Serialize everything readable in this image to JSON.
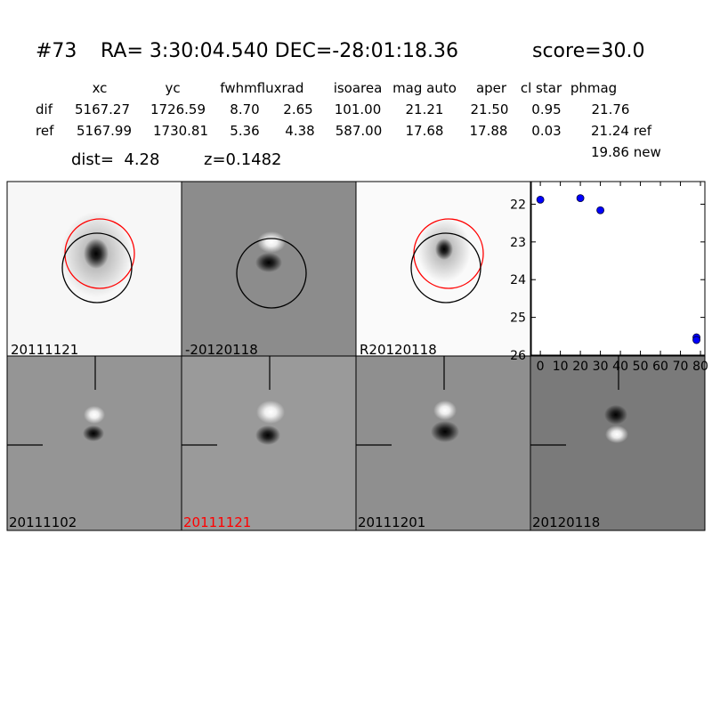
{
  "header": {
    "id": "#73",
    "coords": "RA= 3:30:04.540 DEC=-28:01:18.36",
    "score": "score=30.0"
  },
  "table": {
    "columns": [
      "xc",
      "yc",
      "fwhm",
      "fluxrad",
      "isoarea",
      "mag auto",
      "aper",
      "cl star",
      "phmag"
    ],
    "rows": [
      {
        "label": "dif",
        "cells": [
          "5167.27",
          "1726.59",
          "8.70",
          "2.65",
          "101.00",
          "21.21",
          "21.50",
          "0.95",
          "21.76"
        ]
      },
      {
        "label": "ref",
        "cells": [
          "5167.99",
          "1730.81",
          "5.36",
          "4.38",
          "587.00",
          "17.68",
          "17.88",
          "0.03",
          "21.24 ref"
        ]
      }
    ],
    "extra": "19.86 new"
  },
  "info": {
    "dist": "dist=  4.28",
    "z": "z=0.1482"
  },
  "panels": [
    "20111121",
    "-20120118",
    "R20120118",
    "20111102",
    "20111121",
    "20111201",
    "20120118"
  ],
  "chart_data": {
    "type": "scatter",
    "x": [
      0,
      20,
      30,
      78,
      78
    ],
    "series": [
      {
        "color": "#0000ff",
        "values": [
          21.88,
          21.84,
          22.16,
          25.53,
          25.6
        ]
      }
    ],
    "xlim": [
      -4.5,
      82.2
    ],
    "ylim": [
      26,
      21.4
    ],
    "xticks": [
      0,
      10,
      20,
      30,
      40,
      50,
      60,
      70,
      80
    ],
    "yticks": [
      22,
      23,
      24,
      25,
      26
    ]
  }
}
